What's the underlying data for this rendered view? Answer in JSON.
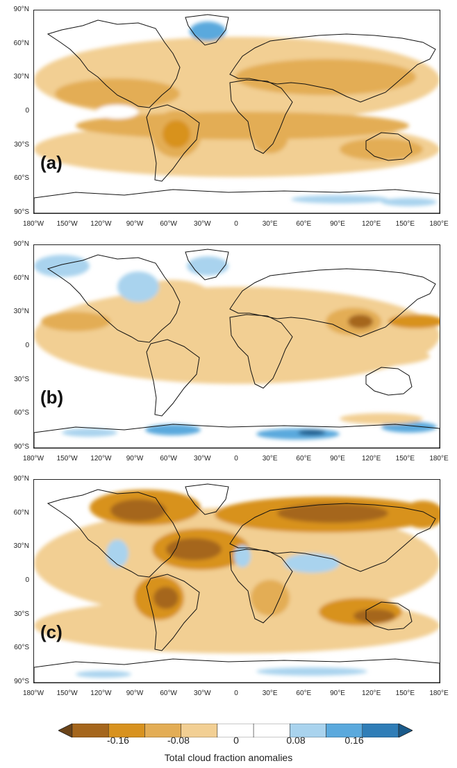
{
  "panels": [
    {
      "label": "(a)",
      "title": "",
      "anomaly_pattern": "moderate decrease"
    },
    {
      "label": "(b)",
      "title": "",
      "anomaly_pattern": "weak decrease with polar increase"
    },
    {
      "label": "(c)",
      "title": "",
      "anomaly_pattern": "strong northern decrease"
    }
  ],
  "lat_ticks": [
    "90°N",
    "60°N",
    "30°N",
    "0",
    "30°S",
    "60°S",
    "90°S"
  ],
  "lon_ticks": [
    "180°W",
    "150°W",
    "120°W",
    "90°W",
    "60°W",
    "30°W",
    "0",
    "30°E",
    "60°E",
    "90°E",
    "120°E",
    "150°E",
    "180°E"
  ],
  "colorbar": {
    "title": "Total cloud fraction anomalies",
    "tick_labels": [
      "-0.16",
      "-0.08",
      "0",
      "0.08",
      "0.16"
    ],
    "levels": [
      -0.2,
      -0.16,
      -0.12,
      -0.08,
      -0.04,
      0,
      0.04,
      0.08,
      0.12,
      0.16,
      0.2
    ],
    "colors": [
      "#6b4419",
      "#a5661c",
      "#d8921f",
      "#e3ad55",
      "#f2cf93",
      "#ffffff",
      "#ffffff",
      "#a9d3ee",
      "#5aa9dd",
      "#2f7db7",
      "#1a5a8a"
    ]
  },
  "colors": {
    "background_neutral": "#ffffff",
    "light_orange": "#f2cf93",
    "orange": "#e3ad55",
    "dark_orange": "#d8921f",
    "brown": "#a5661c",
    "dark_brown": "#6b4419",
    "light_blue": "#a9d3ee",
    "blue": "#5aa9dd",
    "dark_blue": "#1a5a8a",
    "coastline": "#111111"
  }
}
